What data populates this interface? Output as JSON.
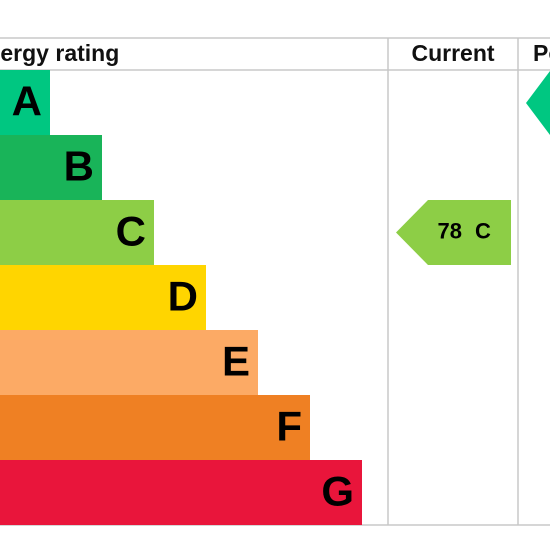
{
  "header": {
    "rating": "Energy rating",
    "current": "Current",
    "potential": "Potential"
  },
  "bands": [
    {
      "letter": "A",
      "color": "#00c781"
    },
    {
      "letter": "B",
      "color": "#19b459"
    },
    {
      "letter": "C",
      "color": "#8dce46"
    },
    {
      "letter": "D",
      "color": "#ffd500"
    },
    {
      "letter": "E",
      "color": "#fcaa65"
    },
    {
      "letter": "F",
      "color": "#ef8023"
    },
    {
      "letter": "G",
      "color": "#e9153b"
    }
  ],
  "current": {
    "value": 78,
    "band": "C"
  }
}
